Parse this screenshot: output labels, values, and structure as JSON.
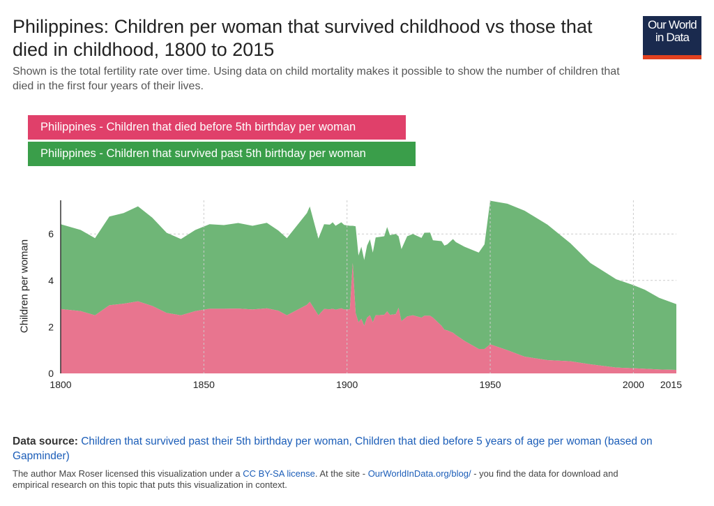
{
  "header": {
    "title": "Philippines: Children per woman that survived childhood vs those that died in childhood, 1800 to 2015",
    "subtitle": "Shown is the total fertility rate over time. Using data on child mortality makes it possible to show the number of children that died in the first four years of their lives.",
    "logo_line1": "Our World",
    "logo_line2": "in Data"
  },
  "colors": {
    "died_fill": "#e8758f",
    "survived_fill": "#6fb677",
    "died_legend": "#e0406a",
    "survived_legend": "#3a9e4a",
    "logo_bg": "#1a2a4e",
    "logo_bar": "#e2411f"
  },
  "chart_data": {
    "type": "area",
    "stacked": true,
    "title": "Philippines: Children per woman that survived childhood vs those that died in childhood, 1800 to 2015",
    "xlabel": "",
    "ylabel": "Children per woman",
    "xlim": [
      1800,
      2015
    ],
    "ylim": [
      0,
      7.5
    ],
    "x_ticks": [
      "1800",
      "1850",
      "1900",
      "1950",
      "2000",
      "2015"
    ],
    "y_ticks": [
      "0",
      "2",
      "4",
      "6"
    ],
    "grid": true,
    "legend_position": "top-left",
    "x": [
      1800,
      1807,
      1812,
      1817,
      1822,
      1827,
      1832,
      1837,
      1842,
      1847,
      1852,
      1857,
      1862,
      1867,
      1872,
      1876,
      1879,
      1886,
      1887,
      1890,
      1892,
      1894,
      1895,
      1896,
      1898,
      1899,
      1901,
      1902,
      1903,
      1904,
      1905,
      1906,
      1907,
      1908,
      1909,
      1910,
      1913,
      1914,
      1915,
      1917,
      1918,
      1919,
      1921,
      1923,
      1926,
      1927,
      1929,
      1930,
      1933,
      1934,
      1935,
      1937,
      1938,
      1941,
      1946,
      1948,
      1950,
      1956,
      1962,
      1970,
      1978,
      1985,
      1994,
      2000,
      2004,
      2009,
      2015
    ],
    "series": [
      {
        "name": "Philippines - Children that died before 5th birthday per woman",
        "values": [
          2.77,
          2.68,
          2.5,
          2.93,
          3.0,
          3.1,
          2.9,
          2.6,
          2.5,
          2.68,
          2.78,
          2.78,
          2.79,
          2.75,
          2.8,
          2.7,
          2.5,
          2.95,
          3.08,
          2.5,
          2.77,
          2.76,
          2.78,
          2.74,
          2.8,
          2.75,
          2.75,
          4.75,
          2.6,
          2.2,
          2.35,
          2.05,
          2.4,
          2.5,
          2.2,
          2.5,
          2.52,
          2.67,
          2.52,
          2.55,
          2.82,
          2.25,
          2.45,
          2.5,
          2.4,
          2.48,
          2.48,
          2.4,
          2.05,
          1.88,
          1.85,
          1.75,
          1.65,
          1.4,
          1.05,
          1.05,
          1.25,
          1.0,
          0.72,
          0.57,
          0.52,
          0.39,
          0.25,
          0.22,
          0.2,
          0.17,
          0.15
        ]
      },
      {
        "name": "Philippines - Children that survived past 5th birthday per woman",
        "values": [
          3.65,
          3.49,
          3.32,
          3.82,
          3.9,
          4.09,
          3.8,
          3.45,
          3.28,
          3.49,
          3.64,
          3.6,
          3.68,
          3.6,
          3.68,
          3.45,
          3.32,
          3.95,
          4.1,
          3.3,
          3.65,
          3.64,
          3.72,
          3.61,
          3.7,
          3.64,
          3.6,
          1.6,
          3.73,
          2.87,
          3.1,
          2.83,
          3.1,
          3.27,
          3.0,
          3.35,
          3.38,
          3.63,
          3.43,
          3.45,
          3.08,
          3.1,
          3.45,
          3.5,
          3.43,
          3.57,
          3.58,
          3.33,
          3.64,
          3.62,
          3.7,
          4.03,
          4.0,
          4.05,
          4.15,
          4.5,
          6.18,
          6.3,
          6.28,
          5.83,
          5.08,
          4.36,
          3.8,
          3.58,
          3.4,
          3.08,
          2.83
        ]
      }
    ]
  },
  "footer": {
    "source_label": "Data source:",
    "source_text": "Children that survived past their 5th birthday per woman, Children that died before 5 years of age per woman (based on Gapminder)",
    "license_pre": "The author Max Roser licensed this visualization under a ",
    "license_link": "CC BY-SA license",
    "license_mid": ". At the site - ",
    "site_link": "OurWorldInData.org/blog/",
    "license_post": " - you find the data for download and",
    "license_line2": "empirical research on this topic that puts this visualization in context."
  }
}
